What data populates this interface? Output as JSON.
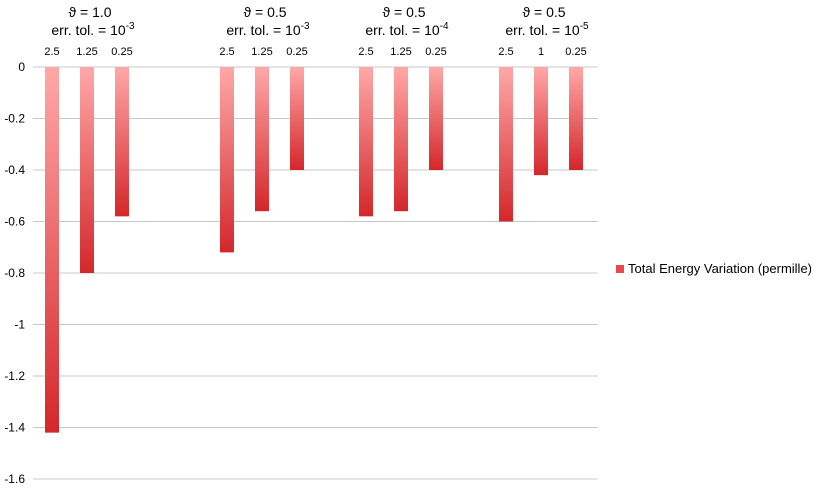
{
  "chart_data": {
    "type": "bar",
    "title": "",
    "xlabel": "",
    "ylabel": "",
    "ylim": [
      -1.6,
      0
    ],
    "y_ticks": [
      "0",
      "-0.2",
      "-0.4",
      "-0.6",
      "-0.8",
      "-1",
      "-1.2",
      "-1.4",
      "-1.6"
    ],
    "grid": true,
    "legend_position": "right",
    "colors": {
      "bar_top": "#ffa8a8",
      "bar_bottom": "#d4272b",
      "grid": "#c8c8c8",
      "legend_swatch": "#e8484c"
    },
    "series": [
      {
        "name": "Total Energy Variation (permille)"
      }
    ],
    "groups": [
      {
        "theta": "ϑ = 1.0",
        "tol_base": "err. tol. = 10",
        "tol_exp": "-3",
        "categories": [
          "2.5",
          "1.25",
          "0.25"
        ],
        "values": [
          -1.42,
          -0.8,
          -0.58
        ]
      },
      {
        "theta": "ϑ = 0.5",
        "tol_base": "err. tol. = 10",
        "tol_exp": "-3",
        "categories": [
          "2.5",
          "1.25",
          "0.25"
        ],
        "values": [
          -0.72,
          -0.56,
          -0.4
        ]
      },
      {
        "theta": "ϑ = 0.5",
        "tol_base": "err. tol. = 10",
        "tol_exp": "-4",
        "categories": [
          "2.5",
          "1.25",
          "0.25"
        ],
        "values": [
          -0.58,
          -0.56,
          -0.4
        ]
      },
      {
        "theta": "ϑ = 0.5",
        "tol_base": "err. tol. = 10",
        "tol_exp": "-5",
        "categories": [
          "2.5",
          "1",
          "0.25"
        ],
        "values": [
          -0.6,
          -0.42,
          -0.4
        ]
      }
    ]
  }
}
